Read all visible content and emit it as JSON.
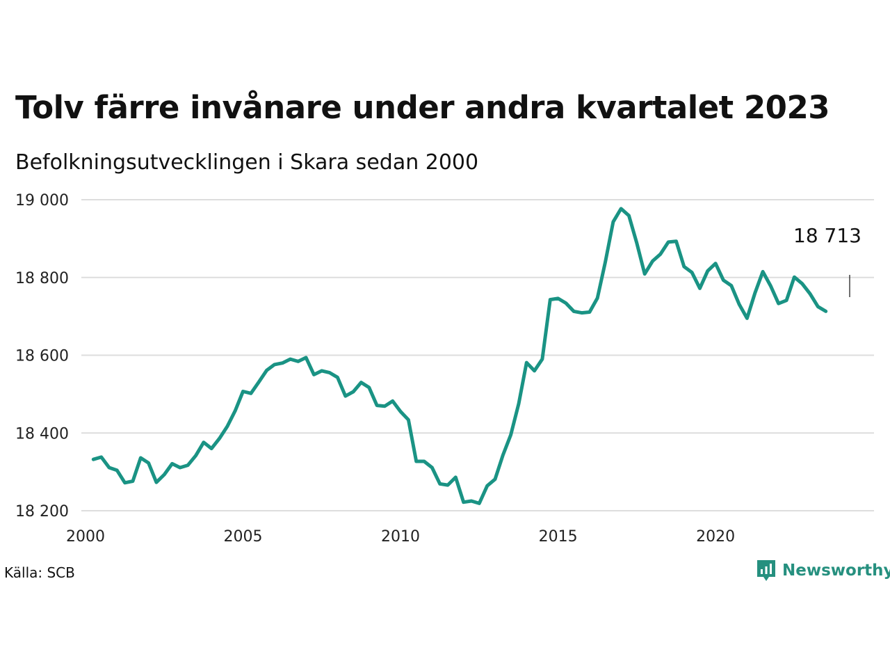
{
  "header": {
    "title": "Tolv färre invånare under andra kvartalet 2023",
    "subtitle": "Befolkningsutvecklingen i Skara sedan 2000"
  },
  "footer": {
    "source": "Källa: SCB",
    "brand": "Newsworthy"
  },
  "colors": {
    "line": "#1a9384",
    "grid": "#dddddd",
    "brand": "#26907f"
  },
  "chart_data": {
    "type": "line",
    "title": "Tolv färre invånare under andra kvartalet 2023",
    "subtitle": "Befolkningsutvecklingen i Skara sedan 2000",
    "xlabel": "",
    "ylabel": "",
    "xlim": [
      2000,
      2024.5
    ],
    "ylim": [
      18200,
      19000
    ],
    "x_ticks": [
      2000,
      2005,
      2010,
      2015,
      2020
    ],
    "x_tick_labels": [
      "2000",
      "2005",
      "2010",
      "2015",
      "2020"
    ],
    "y_ticks": [
      18200,
      18400,
      18600,
      18800,
      19000
    ],
    "y_tick_labels": [
      "18 200",
      "18 400",
      "18 600",
      "18 800",
      "19 000"
    ],
    "grid": "horizontal",
    "annotation": {
      "text": "18 713",
      "x": 2023.5,
      "y": 18713
    },
    "series": [
      {
        "x": [
          2000.25,
          2000.5,
          2000.75,
          2001.0,
          2001.25,
          2001.5,
          2001.75,
          2002.0,
          2002.25,
          2002.5,
          2002.75,
          2003.0,
          2003.25,
          2003.5,
          2003.75,
          2004.0,
          2004.25,
          2004.5,
          2004.75,
          2005.0,
          2005.25,
          2005.5,
          2005.75,
          2006.0,
          2006.25,
          2006.5,
          2006.75,
          2007.0,
          2007.25,
          2007.5,
          2007.75,
          2008.0,
          2008.25,
          2008.5,
          2008.75,
          2009.0,
          2009.25,
          2009.5,
          2009.75,
          2010.0,
          2010.25,
          2010.5,
          2010.75,
          2011.0,
          2011.25,
          2011.5,
          2011.75,
          2012.0,
          2012.25,
          2012.5,
          2012.75,
          2013.0,
          2013.25,
          2013.5,
          2013.75,
          2014.0,
          2014.25,
          2014.5,
          2014.75,
          2015.0,
          2015.25,
          2015.5,
          2015.75,
          2016.0,
          2016.25,
          2016.5,
          2016.75,
          2017.0,
          2017.25,
          2017.5,
          2017.75,
          2018.0,
          2018.25,
          2018.5,
          2018.75,
          2019.0,
          2019.25,
          2019.5,
          2019.75,
          2020.0,
          2020.25,
          2020.5,
          2020.75,
          2021.0,
          2021.25,
          2021.5,
          2021.75,
          2022.0,
          2022.25,
          2022.5,
          2022.75,
          2023.0,
          2023.25,
          2023.5
        ],
        "y": [
          18332,
          18338,
          18311,
          18304,
          18272,
          18276,
          18336,
          18323,
          18273,
          18293,
          18321,
          18311,
          18317,
          18342,
          18376,
          18360,
          18386,
          18417,
          18457,
          18507,
          18502,
          18531,
          18561,
          18576,
          18580,
          18590,
          18584,
          18594,
          18550,
          18560,
          18555,
          18543,
          18495,
          18506,
          18530,
          18517,
          18471,
          18469,
          18482,
          18455,
          18434,
          18327,
          18327,
          18311,
          18269,
          18266,
          18286,
          18222,
          18225,
          18219,
          18264,
          18281,
          18343,
          18395,
          18475,
          18581,
          18560,
          18590,
          18743,
          18746,
          18734,
          18713,
          18709,
          18711,
          18747,
          18840,
          18943,
          18977,
          18959,
          18888,
          18809,
          18842,
          18860,
          18891,
          18893,
          18828,
          18813,
          18772,
          18817,
          18836,
          18793,
          18779,
          18731,
          18695,
          18760,
          18815,
          18778,
          18733,
          18741,
          18801,
          18784,
          18758,
          18725,
          18713
        ]
      }
    ]
  }
}
